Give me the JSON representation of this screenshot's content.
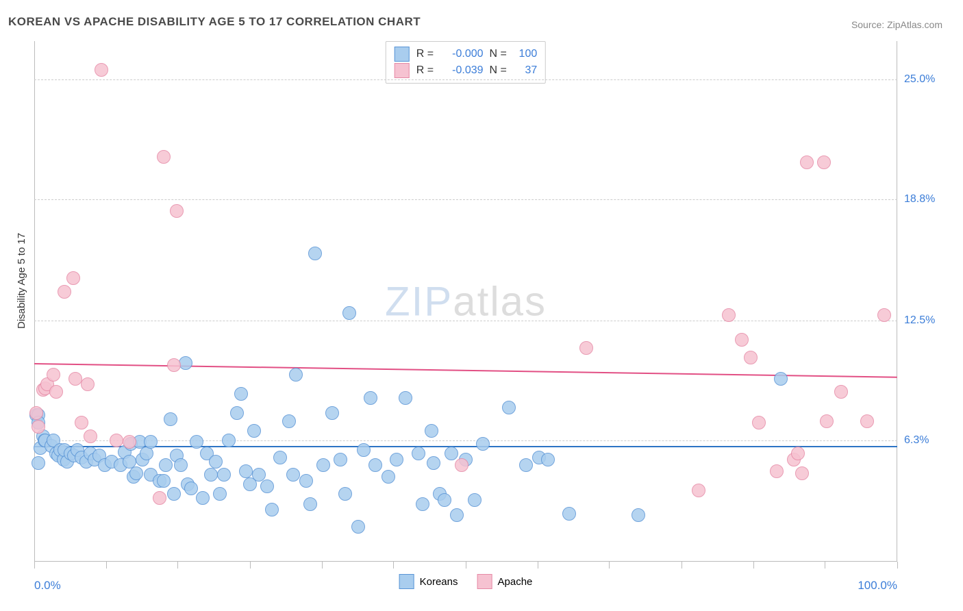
{
  "title": "KOREAN VS APACHE DISABILITY AGE 5 TO 17 CORRELATION CHART",
  "source": "Source: ZipAtlas.com",
  "y_axis_label": "Disability Age 5 to 17",
  "watermark": {
    "part1": "ZIP",
    "part2": "atlas"
  },
  "xlim": [
    0,
    100
  ],
  "ylim": [
    0,
    27
  ],
  "y_ticks": [
    {
      "value": 6.3,
      "label": "6.3%"
    },
    {
      "value": 12.5,
      "label": "12.5%"
    },
    {
      "value": 18.8,
      "label": "18.8%"
    },
    {
      "value": 25.0,
      "label": "25.0%"
    }
  ],
  "x_ticks_pct": [
    0,
    8.3,
    16.6,
    25,
    33.3,
    41.6,
    50,
    58.3,
    66.6,
    75,
    83.3,
    91.6,
    100
  ],
  "x_left_label": "0.0%",
  "x_right_label": "100.0%",
  "series": [
    {
      "name": "Koreans",
      "fill_color": "#a9cdee",
      "stroke_color": "#5a95d6",
      "line_color": "#2d74c4",
      "marker_radius": 9,
      "marker_opacity": 0.85,
      "line_width": 2.5,
      "R": "-0.000",
      "N": "100",
      "reg_line": {
        "y_at_x0": 6.0,
        "y_at_x100": 6.0
      },
      "points": [
        {
          "x": 0.2,
          "y": 7.6
        },
        {
          "x": 0.5,
          "y": 7.6
        },
        {
          "x": 0.5,
          "y": 5.1
        },
        {
          "x": 0.7,
          "y": 5.9
        },
        {
          "x": 0.5,
          "y": 7.2
        },
        {
          "x": 1.0,
          "y": 6.5
        },
        {
          "x": 1.2,
          "y": 6.3
        },
        {
          "x": 1.3,
          "y": 6.3
        },
        {
          "x": 2.0,
          "y": 6.0
        },
        {
          "x": 2.2,
          "y": 6.3
        },
        {
          "x": 2.5,
          "y": 5.6
        },
        {
          "x": 2.8,
          "y": 5.5
        },
        {
          "x": 3.0,
          "y": 5.8
        },
        {
          "x": 3.4,
          "y": 5.3
        },
        {
          "x": 3.5,
          "y": 5.8
        },
        {
          "x": 3.8,
          "y": 5.2
        },
        {
          "x": 4.2,
          "y": 5.6
        },
        {
          "x": 4.6,
          "y": 5.5
        },
        {
          "x": 5.0,
          "y": 5.8
        },
        {
          "x": 5.5,
          "y": 5.4
        },
        {
          "x": 6.0,
          "y": 5.2
        },
        {
          "x": 6.5,
          "y": 5.6
        },
        {
          "x": 7.0,
          "y": 5.3
        },
        {
          "x": 7.5,
          "y": 5.5
        },
        {
          "x": 8.2,
          "y": 5.0
        },
        {
          "x": 9.0,
          "y": 5.2
        },
        {
          "x": 10.0,
          "y": 5.0
        },
        {
          "x": 10.5,
          "y": 5.7
        },
        {
          "x": 11.0,
          "y": 5.2
        },
        {
          "x": 11.2,
          "y": 6.1
        },
        {
          "x": 11.5,
          "y": 4.4
        },
        {
          "x": 11.8,
          "y": 4.6
        },
        {
          "x": 12.2,
          "y": 6.2
        },
        {
          "x": 12.5,
          "y": 5.3
        },
        {
          "x": 13.0,
          "y": 5.6
        },
        {
          "x": 13.5,
          "y": 6.2
        },
        {
          "x": 13.5,
          "y": 4.5
        },
        {
          "x": 14.5,
          "y": 4.2
        },
        {
          "x": 15.0,
          "y": 4.2
        },
        {
          "x": 15.2,
          "y": 5.0
        },
        {
          "x": 15.8,
          "y": 7.4
        },
        {
          "x": 16.2,
          "y": 3.5
        },
        {
          "x": 16.5,
          "y": 5.5
        },
        {
          "x": 17.0,
          "y": 5.0
        },
        {
          "x": 17.5,
          "y": 10.3
        },
        {
          "x": 17.8,
          "y": 4.0
        },
        {
          "x": 18.2,
          "y": 3.8
        },
        {
          "x": 18.8,
          "y": 6.2
        },
        {
          "x": 19.5,
          "y": 3.3
        },
        {
          "x": 20.0,
          "y": 5.6
        },
        {
          "x": 20.5,
          "y": 4.5
        },
        {
          "x": 21.0,
          "y": 5.2
        },
        {
          "x": 21.5,
          "y": 3.5
        },
        {
          "x": 22.0,
          "y": 4.5
        },
        {
          "x": 22.5,
          "y": 6.3
        },
        {
          "x": 23.5,
          "y": 7.7
        },
        {
          "x": 24.0,
          "y": 8.7
        },
        {
          "x": 24.5,
          "y": 4.7
        },
        {
          "x": 25.0,
          "y": 4.0
        },
        {
          "x": 25.5,
          "y": 6.8
        },
        {
          "x": 26.0,
          "y": 4.5
        },
        {
          "x": 27.0,
          "y": 3.9
        },
        {
          "x": 27.5,
          "y": 2.7
        },
        {
          "x": 28.5,
          "y": 5.4
        },
        {
          "x": 29.5,
          "y": 7.3
        },
        {
          "x": 30.0,
          "y": 4.5
        },
        {
          "x": 30.3,
          "y": 9.7
        },
        {
          "x": 31.5,
          "y": 4.2
        },
        {
          "x": 32.0,
          "y": 3.0
        },
        {
          "x": 32.5,
          "y": 16.0
        },
        {
          "x": 33.5,
          "y": 5.0
        },
        {
          "x": 34.5,
          "y": 7.7
        },
        {
          "x": 35.5,
          "y": 5.3
        },
        {
          "x": 36.0,
          "y": 3.5
        },
        {
          "x": 36.5,
          "y": 12.9
        },
        {
          "x": 37.5,
          "y": 1.8
        },
        {
          "x": 38.2,
          "y": 5.8
        },
        {
          "x": 39.0,
          "y": 8.5
        },
        {
          "x": 39.5,
          "y": 5.0
        },
        {
          "x": 41.0,
          "y": 4.4
        },
        {
          "x": 42.0,
          "y": 5.3
        },
        {
          "x": 43.0,
          "y": 8.5
        },
        {
          "x": 44.5,
          "y": 5.6
        },
        {
          "x": 45.0,
          "y": 3.0
        },
        {
          "x": 46.0,
          "y": 6.8
        },
        {
          "x": 46.3,
          "y": 5.1
        },
        {
          "x": 47.0,
          "y": 3.5
        },
        {
          "x": 47.5,
          "y": 3.2
        },
        {
          "x": 48.3,
          "y": 5.6
        },
        {
          "x": 49.0,
          "y": 2.4
        },
        {
          "x": 50.0,
          "y": 5.3
        },
        {
          "x": 51.0,
          "y": 3.2
        },
        {
          "x": 52.0,
          "y": 6.1
        },
        {
          "x": 55.0,
          "y": 8.0
        },
        {
          "x": 57.0,
          "y": 5.0
        },
        {
          "x": 58.5,
          "y": 5.4
        },
        {
          "x": 59.5,
          "y": 5.3
        },
        {
          "x": 62.0,
          "y": 2.5
        },
        {
          "x": 70.0,
          "y": 2.4
        },
        {
          "x": 86.5,
          "y": 9.5
        }
      ]
    },
    {
      "name": "Apache",
      "fill_color": "#f6c2d1",
      "stroke_color": "#e68aa6",
      "line_color": "#e24f84",
      "marker_radius": 9,
      "marker_opacity": 0.85,
      "line_width": 2.5,
      "R": "-0.039",
      "N": "37",
      "reg_line": {
        "y_at_x0": 10.3,
        "y_at_x100": 9.6
      },
      "points": [
        {
          "x": 0.2,
          "y": 7.7
        },
        {
          "x": 0.5,
          "y": 7.0
        },
        {
          "x": 1.0,
          "y": 8.9
        },
        {
          "x": 1.3,
          "y": 9.0
        },
        {
          "x": 1.5,
          "y": 9.2
        },
        {
          "x": 2.2,
          "y": 9.7
        },
        {
          "x": 2.5,
          "y": 8.8
        },
        {
          "x": 3.5,
          "y": 14.0
        },
        {
          "x": 4.5,
          "y": 14.7
        },
        {
          "x": 4.8,
          "y": 9.5
        },
        {
          "x": 5.5,
          "y": 7.2
        },
        {
          "x": 6.2,
          "y": 9.2
        },
        {
          "x": 6.5,
          "y": 6.5
        },
        {
          "x": 7.8,
          "y": 25.5
        },
        {
          "x": 9.5,
          "y": 6.3
        },
        {
          "x": 11.0,
          "y": 6.2
        },
        {
          "x": 14.5,
          "y": 3.3
        },
        {
          "x": 15.0,
          "y": 21.0
        },
        {
          "x": 16.2,
          "y": 10.2
        },
        {
          "x": 16.5,
          "y": 18.2
        },
        {
          "x": 49.5,
          "y": 5.0
        },
        {
          "x": 64.0,
          "y": 11.1
        },
        {
          "x": 77.0,
          "y": 3.7
        },
        {
          "x": 80.5,
          "y": 12.8
        },
        {
          "x": 82.0,
          "y": 11.5
        },
        {
          "x": 83.0,
          "y": 10.6
        },
        {
          "x": 84.0,
          "y": 7.2
        },
        {
          "x": 86.0,
          "y": 4.7
        },
        {
          "x": 88.0,
          "y": 5.3
        },
        {
          "x": 88.5,
          "y": 5.6
        },
        {
          "x": 89.0,
          "y": 4.6
        },
        {
          "x": 89.5,
          "y": 20.7
        },
        {
          "x": 91.5,
          "y": 20.7
        },
        {
          "x": 91.8,
          "y": 7.3
        },
        {
          "x": 93.5,
          "y": 8.8
        },
        {
          "x": 96.5,
          "y": 7.3
        },
        {
          "x": 98.5,
          "y": 12.8
        }
      ]
    }
  ]
}
